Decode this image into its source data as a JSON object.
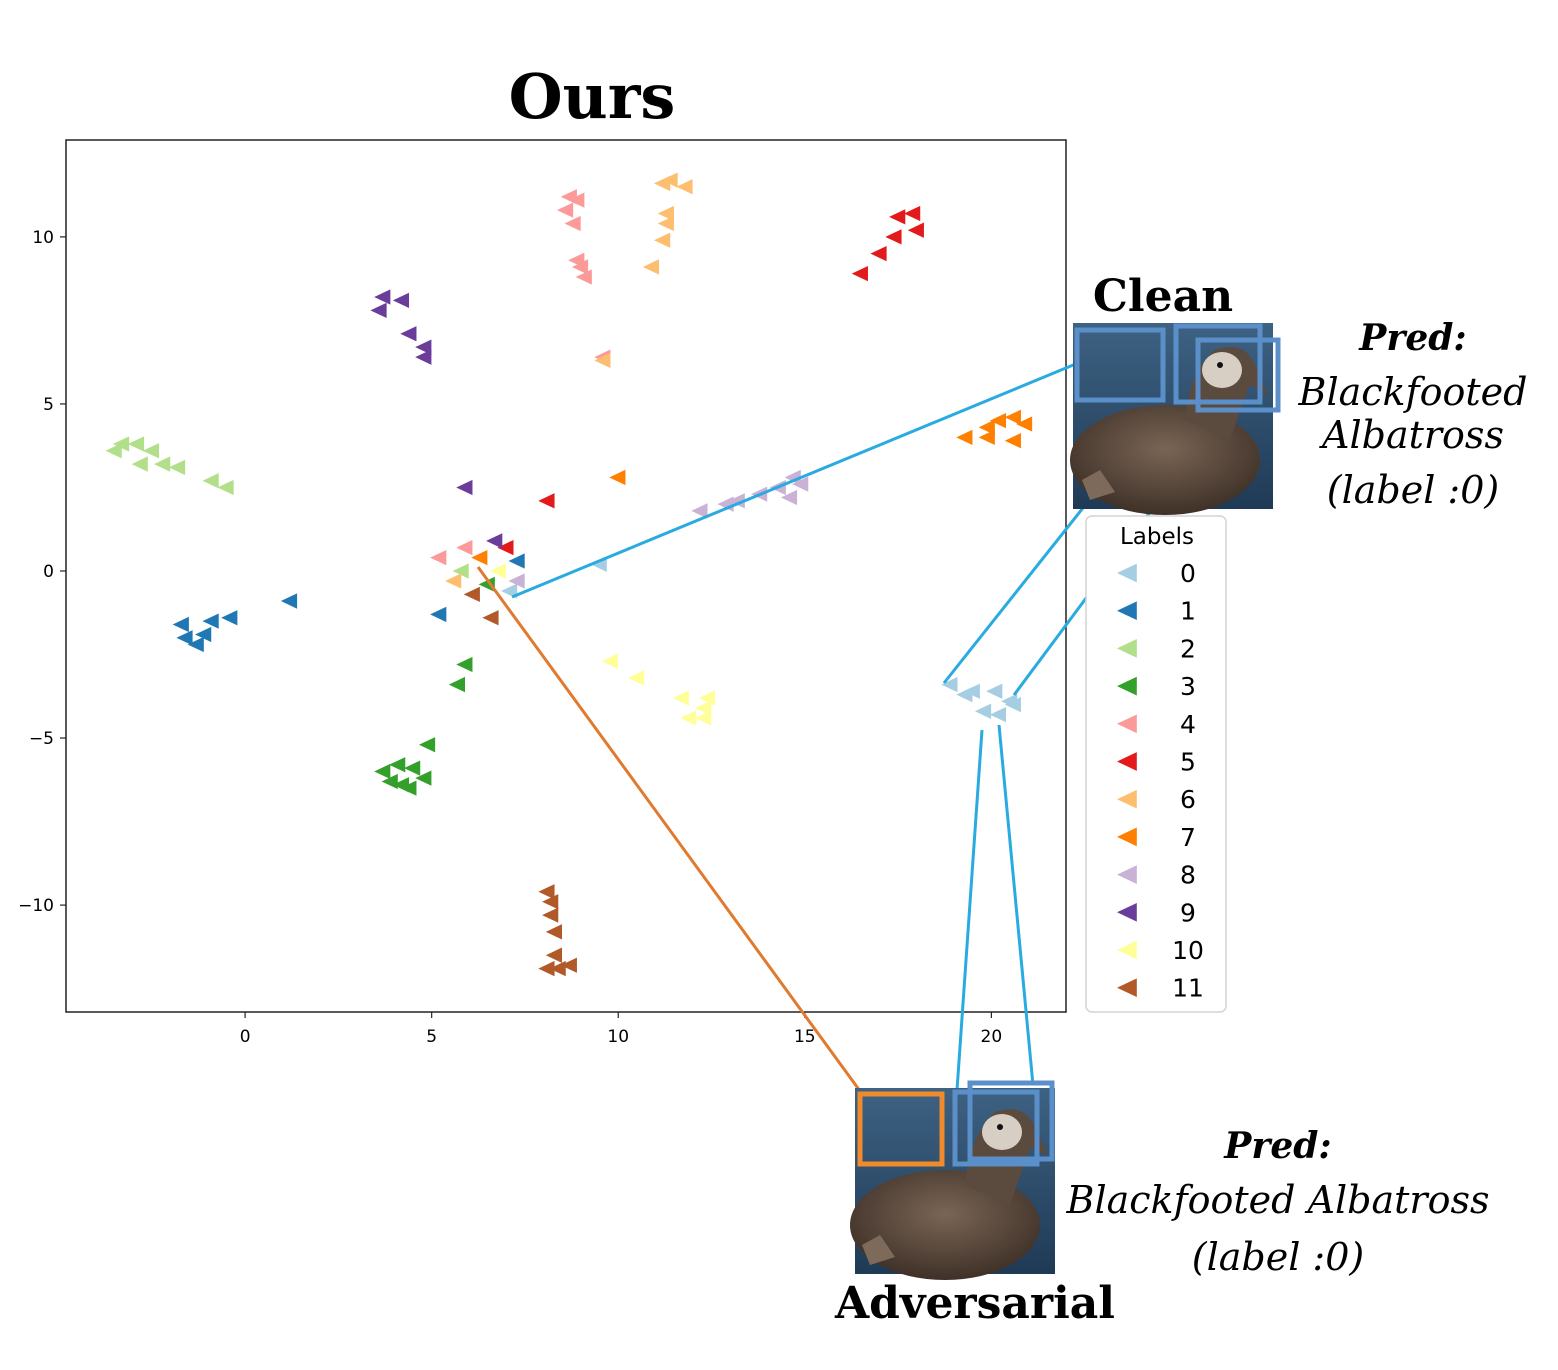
{
  "chart_data": {
    "type": "scatter",
    "title": "Ours",
    "marker": "left-pointing triangle",
    "xlim": [
      -4.8,
      22
    ],
    "ylim": [
      -13.2,
      12.9
    ],
    "xticks": [
      0,
      5,
      10,
      15,
      20
    ],
    "yticks": [
      10,
      5,
      0,
      -5,
      -10
    ],
    "xtick_labels": [
      "0",
      "5",
      "10",
      "15",
      "20"
    ],
    "ytick_labels": [
      "10",
      "5",
      "0",
      "−5",
      "−10"
    ],
    "legend": {
      "title": "Labels",
      "placement": "right"
    },
    "series": [
      {
        "name": "0",
        "color": "#a6cee3",
        "points": [
          [
            18.9,
            -3.4
          ],
          [
            19.5,
            -3.6
          ],
          [
            19.3,
            -3.7
          ],
          [
            20.1,
            -3.6
          ],
          [
            20.5,
            -3.9
          ],
          [
            19.8,
            -4.2
          ],
          [
            20.2,
            -4.3
          ],
          [
            20.6,
            -4.0
          ],
          [
            9.5,
            0.2
          ],
          [
            7.1,
            -0.6
          ]
        ]
      },
      {
        "name": "1",
        "color": "#1f78b4",
        "points": [
          [
            -1.7,
            -1.6
          ],
          [
            -1.6,
            -2.0
          ],
          [
            -1.3,
            -2.2
          ],
          [
            -1.1,
            -1.9
          ],
          [
            -0.9,
            -1.5
          ],
          [
            -0.4,
            -1.4
          ],
          [
            1.2,
            -0.9
          ],
          [
            5.2,
            -1.3
          ],
          [
            7.3,
            0.3
          ]
        ]
      },
      {
        "name": "2",
        "color": "#b2df8a",
        "points": [
          [
            -3.5,
            3.6
          ],
          [
            -3.3,
            3.8
          ],
          [
            -2.9,
            3.8
          ],
          [
            -2.5,
            3.6
          ],
          [
            -2.8,
            3.2
          ],
          [
            -2.2,
            3.2
          ],
          [
            -1.8,
            3.1
          ],
          [
            -0.9,
            2.7
          ],
          [
            -0.5,
            2.5
          ],
          [
            5.8,
            0.0
          ]
        ]
      },
      {
        "name": "3",
        "color": "#33a02c",
        "points": [
          [
            3.7,
            -6.0
          ],
          [
            3.9,
            -6.3
          ],
          [
            4.1,
            -5.8
          ],
          [
            4.2,
            -6.4
          ],
          [
            4.5,
            -5.9
          ],
          [
            4.8,
            -6.2
          ],
          [
            4.4,
            -6.5
          ],
          [
            4.9,
            -5.2
          ],
          [
            5.9,
            -2.8
          ],
          [
            5.7,
            -3.4
          ],
          [
            6.5,
            -0.4
          ]
        ]
      },
      {
        "name": "4",
        "color": "#fb9a99",
        "points": [
          [
            8.7,
            11.2
          ],
          [
            8.9,
            11.1
          ],
          [
            8.6,
            10.8
          ],
          [
            8.8,
            10.4
          ],
          [
            8.9,
            9.3
          ],
          [
            9.0,
            9.1
          ],
          [
            9.1,
            8.8
          ],
          [
            9.6,
            6.4
          ],
          [
            5.2,
            0.4
          ],
          [
            5.9,
            0.7
          ]
        ]
      },
      {
        "name": "5",
        "color": "#e31a1c",
        "points": [
          [
            16.5,
            8.9
          ],
          [
            17.0,
            9.5
          ],
          [
            17.4,
            10.0
          ],
          [
            17.5,
            10.6
          ],
          [
            17.9,
            10.7
          ],
          [
            18.0,
            10.2
          ],
          [
            8.1,
            2.1
          ],
          [
            7.0,
            0.7
          ]
        ]
      },
      {
        "name": "6",
        "color": "#fdbf6f",
        "points": [
          [
            11.2,
            11.6
          ],
          [
            11.4,
            11.7
          ],
          [
            11.8,
            11.5
          ],
          [
            11.3,
            10.7
          ],
          [
            11.3,
            10.4
          ],
          [
            11.2,
            9.9
          ],
          [
            10.9,
            9.1
          ],
          [
            9.6,
            6.3
          ],
          [
            5.6,
            -0.3
          ]
        ]
      },
      {
        "name": "7",
        "color": "#ff7f00",
        "points": [
          [
            19.3,
            4.0
          ],
          [
            19.9,
            4.3
          ],
          [
            19.9,
            4.0
          ],
          [
            20.2,
            4.5
          ],
          [
            20.6,
            4.6
          ],
          [
            20.9,
            4.4
          ],
          [
            20.6,
            3.9
          ],
          [
            10.0,
            2.8
          ],
          [
            6.3,
            0.4
          ]
        ]
      },
      {
        "name": "8",
        "color": "#cab2d6",
        "points": [
          [
            12.2,
            1.8
          ],
          [
            12.9,
            2.0
          ],
          [
            13.2,
            2.1
          ],
          [
            13.8,
            2.3
          ],
          [
            14.3,
            2.5
          ],
          [
            14.7,
            2.8
          ],
          [
            14.9,
            2.6
          ],
          [
            14.6,
            2.2
          ],
          [
            7.3,
            -0.3
          ]
        ]
      },
      {
        "name": "9",
        "color": "#6a3d9a",
        "points": [
          [
            3.7,
            8.2
          ],
          [
            3.6,
            7.8
          ],
          [
            4.2,
            8.1
          ],
          [
            4.4,
            7.1
          ],
          [
            4.8,
            6.7
          ],
          [
            4.8,
            6.4
          ],
          [
            5.9,
            2.5
          ],
          [
            6.7,
            0.9
          ]
        ]
      },
      {
        "name": "10",
        "color": "#ffff99",
        "points": [
          [
            9.8,
            -2.7
          ],
          [
            10.5,
            -3.2
          ],
          [
            11.7,
            -3.8
          ],
          [
            12.4,
            -3.8
          ],
          [
            12.3,
            -4.1
          ],
          [
            12.3,
            -4.4
          ],
          [
            11.9,
            -4.4
          ],
          [
            6.8,
            0.0
          ]
        ]
      },
      {
        "name": "11",
        "color": "#b15928",
        "points": [
          [
            8.1,
            -9.6
          ],
          [
            8.2,
            -9.9
          ],
          [
            8.2,
            -10.3
          ],
          [
            8.3,
            -10.8
          ],
          [
            8.3,
            -11.5
          ],
          [
            8.1,
            -11.9
          ],
          [
            8.4,
            -11.9
          ],
          [
            8.7,
            -11.8
          ],
          [
            6.1,
            -0.7
          ],
          [
            6.6,
            -1.4
          ]
        ]
      }
    ]
  },
  "annotations": {
    "clean": {
      "caption": "Clean",
      "pred_title": "Pred:",
      "pred_lines": [
        "Blackfooted",
        "Albatross",
        "(label :0)"
      ]
    },
    "adversarial": {
      "caption": "Adversarial",
      "pred_title": "Pred:",
      "pred_lines": [
        "Blackfooted Albatross",
        "(label :0)"
      ]
    },
    "colors": {
      "clean_link": "#29abe2",
      "adv_link": "#e07a2f",
      "box_blue": "#5b8fc9",
      "box_orange": "#f08a2c"
    }
  }
}
